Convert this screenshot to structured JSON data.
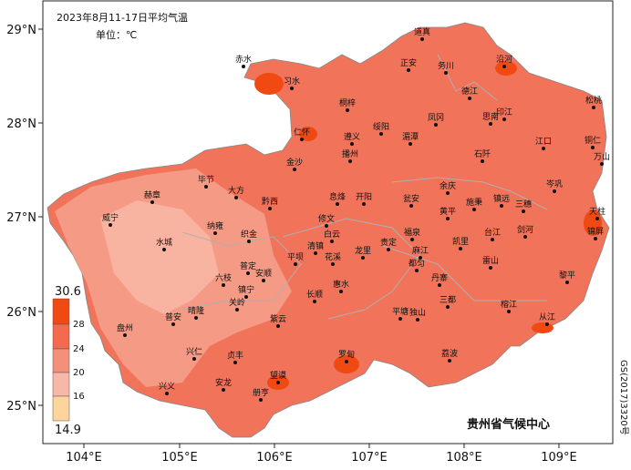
{
  "title": "2023年8月11-17日平均气温",
  "unit": "单位：℃",
  "cities": [
    "道真",
    "正安",
    "务川",
    "沿河",
    "赤水",
    "习水",
    "桐梓",
    "松桃",
    "德江",
    "印江",
    "绥阳",
    "凤冈",
    "思南",
    "仁怀",
    "遵义",
    "湄潭",
    "铜仁",
    "播州",
    "石阡",
    "江口",
    "万山",
    "金沙",
    "余庆",
    "岑巩",
    "三穗",
    "赫章",
    "毕节",
    "大方",
    "黔西",
    "息烽",
    "开阳",
    "瓮安",
    "施秉",
    "镇远",
    "天柱",
    "威宁",
    "黄平",
    "修文",
    "纳雍",
    "织金",
    "白云",
    "福泉",
    "剑河",
    "锦屏",
    "凯里",
    "台江",
    "清镇",
    "龙里",
    "贵定",
    "麻江",
    "雷山",
    "水城",
    "平坝",
    "花溪",
    "都匀",
    "丹寨",
    "六枝",
    "普定",
    "安顺",
    "黎平",
    "长顺",
    "惠水",
    "三都",
    "镇宁",
    "关岭",
    "晴隆",
    "榕江",
    "从江",
    "盘州",
    "普安",
    "紫云",
    "平塘",
    "独山",
    "兴仁",
    "贞丰",
    "罗甸",
    "荔波",
    "望谟",
    "安龙",
    "兴义",
    "册亨"
  ],
  "lat_labels": [
    "29°N",
    "28°N",
    "27°N",
    "26°N",
    "25°N"
  ],
  "lon_labels": [
    "104°E",
    "105°E",
    "106°E",
    "107°E",
    "108°E",
    "109°E"
  ],
  "legend": {
    "labels": [
      "30.6",
      "28",
      "24",
      "20",
      "16",
      "14.9"
    ]
  },
  "credit": "贵州省气候中心",
  "map_number": "GS(2017)3320号"
}
